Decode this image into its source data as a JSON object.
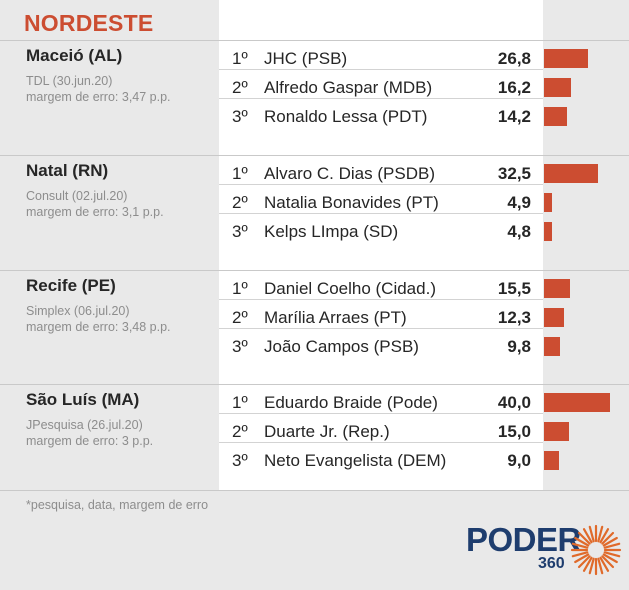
{
  "region": "NORDESTE",
  "footnote": "*pesquisa, data, margem de erro",
  "logo": {
    "word": "PODER",
    "number": "360",
    "brand_color": "#1e3d6e",
    "sun_color": "#e06a2a"
  },
  "colors": {
    "accent": "#cc4d31",
    "bar": "#cc4d31",
    "background": "#e9e9e9"
  },
  "chart_data": {
    "type": "bar",
    "title": "NORDESTE",
    "groups": [
      {
        "city": "Maceió (AL)",
        "pollster": "TDL (30.jun.20)",
        "margin": "margem de erro: 3,47 p.p.",
        "candidates": [
          {
            "rank": "1º",
            "name": "JHC (PSB)",
            "value": 26.8,
            "label": "26,8"
          },
          {
            "rank": "2º",
            "name": "Alfredo Gaspar (MDB)",
            "value": 16.2,
            "label": "16,2"
          },
          {
            "rank": "3º",
            "name": "Ronaldo Lessa (PDT)",
            "value": 14.2,
            "label": "14,2"
          }
        ]
      },
      {
        "city": "Natal (RN)",
        "pollster": "Consult (02.jul.20)",
        "margin": "margem de erro: 3,1 p.p.",
        "candidates": [
          {
            "rank": "1º",
            "name": "Alvaro C. Dias (PSDB)",
            "value": 32.5,
            "label": "32,5"
          },
          {
            "rank": "2º",
            "name": "Natalia Bonavides (PT)",
            "value": 4.9,
            "label": "4,9"
          },
          {
            "rank": "3º",
            "name": "Kelps LImpa (SD)",
            "value": 4.8,
            "label": "4,8"
          }
        ]
      },
      {
        "city": "Recife (PE)",
        "pollster": "Simplex (06.jul.20)",
        "margin": "margem de erro: 3,48 p.p.",
        "candidates": [
          {
            "rank": "1º",
            "name": "Daniel Coelho (Cidad.)",
            "value": 15.5,
            "label": "15,5"
          },
          {
            "rank": "2º",
            "name": "Marília Arraes (PT)",
            "value": 12.3,
            "label": "12,3"
          },
          {
            "rank": "3º",
            "name": "João Campos (PSB)",
            "value": 9.8,
            "label": "9,8"
          }
        ]
      },
      {
        "city": "São Luís (MA)",
        "pollster": "JPesquisa (26.jul.20)",
        "margin": "margem de erro: 3 p.p.",
        "candidates": [
          {
            "rank": "1º",
            "name": "Eduardo Braide (Pode)",
            "value": 40.0,
            "label": "40,0"
          },
          {
            "rank": "2º",
            "name": "Duarte Jr. (Rep.)",
            "value": 15.0,
            "label": "15,0"
          },
          {
            "rank": "3º",
            "name": "Neto Evangelista (DEM)",
            "value": 9.0,
            "label": "9,0"
          }
        ]
      }
    ]
  }
}
